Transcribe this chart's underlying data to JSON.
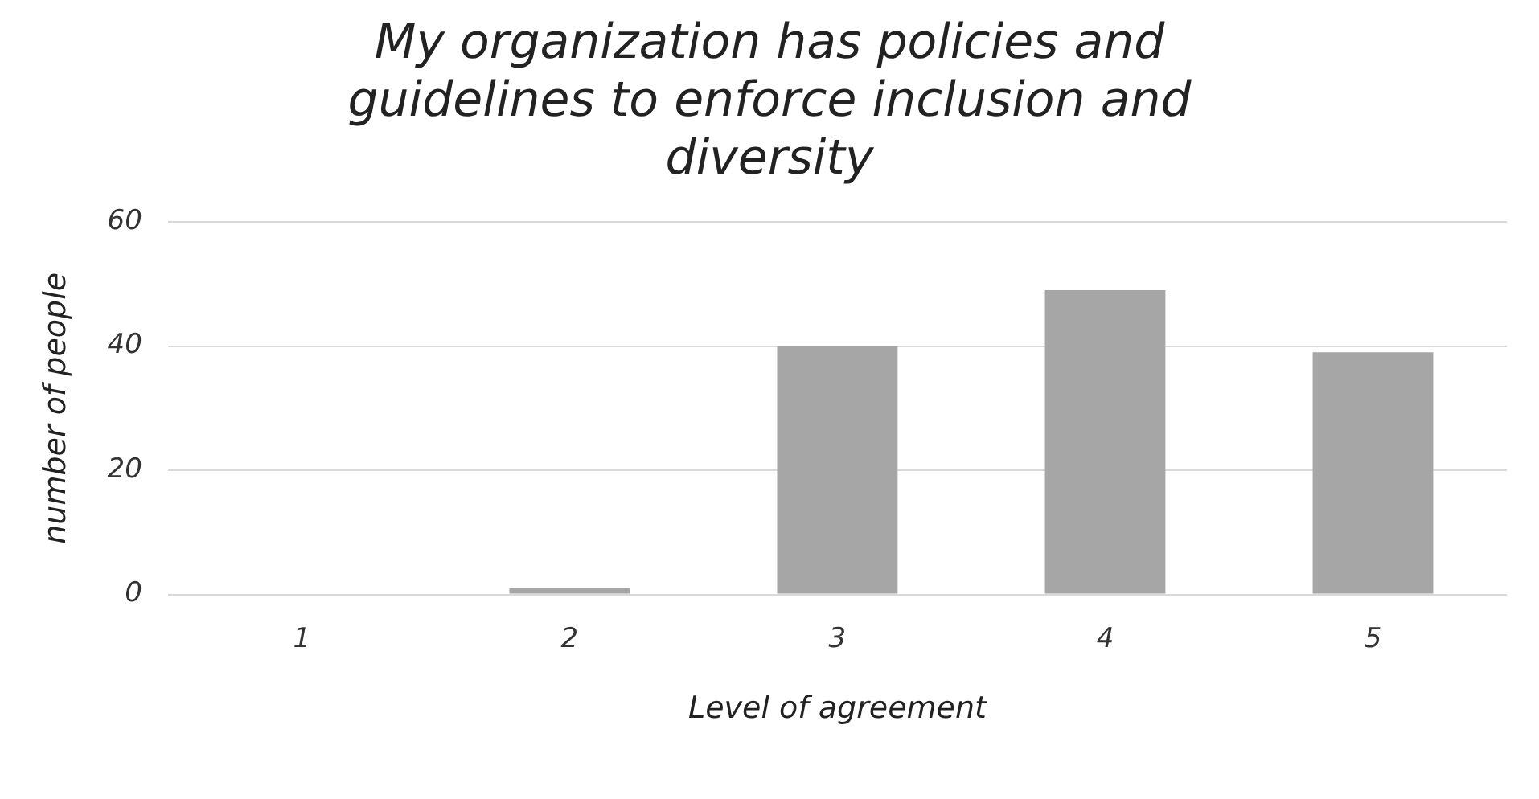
{
  "chart_data": {
    "type": "bar",
    "title": "My organization has policies and guidelines to enforce inclusion and diversity",
    "xlabel": "Level of agreement",
    "ylabel": "number of people",
    "categories": [
      "1",
      "2",
      "3",
      "4",
      "5"
    ],
    "values": [
      0,
      1,
      40,
      49,
      39
    ],
    "color": "#a6a6a6",
    "ylim": [
      0,
      60
    ],
    "yticks": [
      0,
      20,
      40,
      60
    ],
    "grid": "y"
  }
}
